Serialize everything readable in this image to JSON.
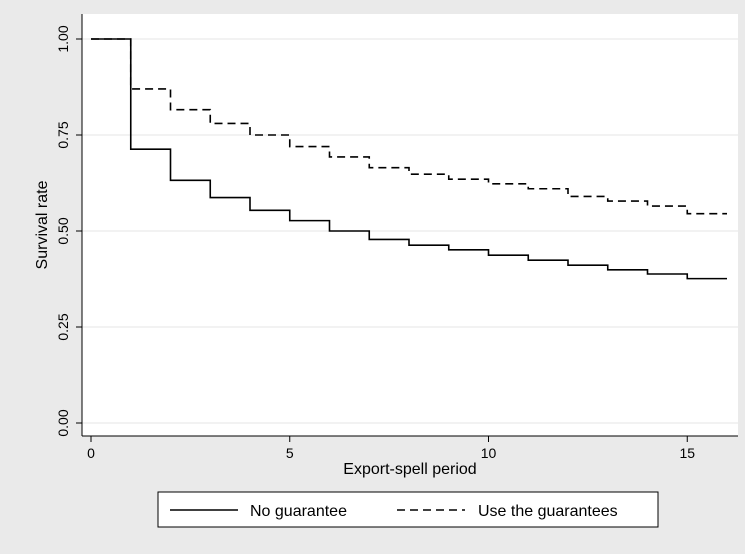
{
  "chart_data": {
    "type": "line",
    "step": true,
    "title": "",
    "xlabel": "Export-spell period",
    "ylabel": "Survival rate",
    "xlim": [
      0,
      16
    ],
    "ylim": [
      0,
      1
    ],
    "x_ticks": [
      0,
      5,
      10,
      15
    ],
    "y_ticks": [
      "0.00",
      "0.25",
      "0.50",
      "0.75",
      "1.00"
    ],
    "grid": "horizontal",
    "legend_position": "bottom",
    "series": [
      {
        "name": "No guarantee",
        "line_style": "solid",
        "color": "#000000",
        "x": [
          0,
          1,
          2,
          3,
          4,
          5,
          6,
          7,
          8,
          9,
          10,
          11,
          12,
          13,
          14,
          15,
          16
        ],
        "y": [
          1.0,
          0.713,
          0.632,
          0.587,
          0.554,
          0.527,
          0.5,
          0.478,
          0.463,
          0.451,
          0.437,
          0.424,
          0.411,
          0.399,
          0.388,
          0.376,
          0.376
        ]
      },
      {
        "name": "Use the guarantees",
        "line_style": "dashed",
        "color": "#000000",
        "x": [
          0,
          1,
          2,
          3,
          4,
          5,
          6,
          7,
          8,
          9,
          10,
          11,
          12,
          13,
          14,
          15,
          16
        ],
        "y": [
          1.0,
          0.87,
          0.816,
          0.78,
          0.75,
          0.72,
          0.693,
          0.665,
          0.648,
          0.635,
          0.623,
          0.61,
          0.59,
          0.578,
          0.565,
          0.545,
          0.545
        ]
      }
    ]
  }
}
